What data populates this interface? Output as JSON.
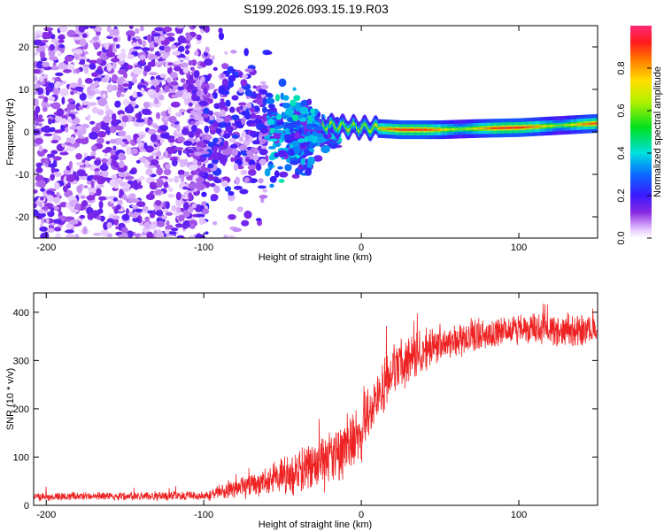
{
  "title": "S199.2026.093.15.19.R03",
  "chart_data": [
    {
      "type": "heatmap",
      "xlabel": "Height of straight line (km)",
      "ylabel": "Frequency (Hz)",
      "xlim": [
        -208,
        150
      ],
      "ylim": [
        -25,
        25
      ],
      "x_ticks": [
        -200,
        -100,
        0,
        100
      ],
      "y_ticks": [
        -20,
        -10,
        0,
        10,
        20
      ],
      "colorbar": {
        "label": "Normalized spectral amplitude",
        "range": [
          0,
          1
        ],
        "ticks": [
          "0.0",
          "0.2",
          "0.4",
          "0.6",
          "0.8"
        ],
        "tick_values": [
          0.0,
          0.2,
          0.4,
          0.6,
          0.8
        ]
      },
      "ridge": {
        "description_points_x": [
          -25,
          0,
          25,
          50,
          75,
          100,
          125,
          150
        ],
        "description_points_freq": [
          1.5,
          1.0,
          0.5,
          0.5,
          0.8,
          1.0,
          1.5,
          2.0
        ],
        "peak_amplitude": 0.95
      }
    },
    {
      "type": "line",
      "xlabel": "Height of straight line (km)",
      "ylabel": "SNR (10 * v/v)",
      "xlim": [
        -208,
        150
      ],
      "ylim": [
        0,
        440
      ],
      "x_ticks": [
        -200,
        -100,
        0,
        100
      ],
      "y_ticks": [
        0,
        100,
        200,
        300,
        400
      ],
      "series_color": "#ee2222",
      "envelope": {
        "x": [
          -208,
          -100,
          -80,
          -50,
          -20,
          0,
          20,
          50,
          100,
          150
        ],
        "mean": [
          18,
          20,
          35,
          60,
          90,
          160,
          280,
          340,
          365,
          360
        ],
        "spread": [
          10,
          12,
          25,
          45,
          70,
          80,
          60,
          45,
          35,
          40
        ]
      }
    }
  ]
}
